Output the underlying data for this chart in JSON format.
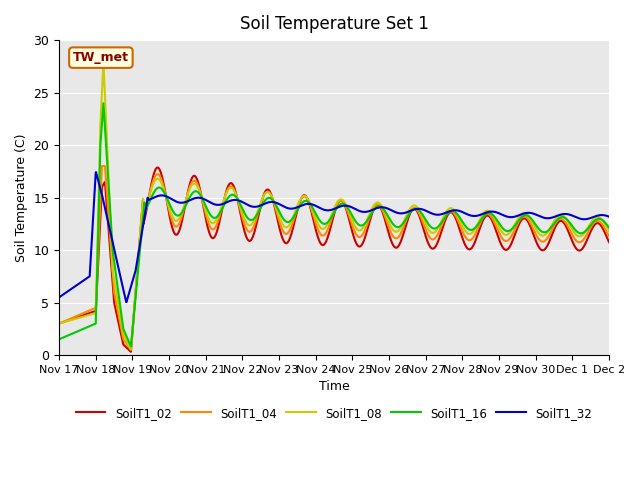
{
  "title": "Soil Temperature Set 1",
  "ylabel": "Soil Temperature (C)",
  "xlabel": "Time",
  "annotation": "TW_met",
  "ylim": [
    0,
    30
  ],
  "xlim": [
    0,
    360
  ],
  "background_color": "#e8e8e8",
  "series_colors": {
    "SoilT1_02": "#cc0000",
    "SoilT1_04": "#ff8800",
    "SoilT1_08": "#cccc00",
    "SoilT1_16": "#00cc00",
    "SoilT1_32": "#0000cc"
  },
  "x_tick_labels": [
    "Nov 17",
    "Nov 18",
    "Nov 19",
    "Nov 20",
    "Nov 21",
    "Nov 22",
    "Nov 23",
    "Nov 24",
    "Nov 25",
    "Nov 26",
    "Nov 27",
    "Nov 28",
    "Nov 29",
    "Nov 30",
    "Dec 1",
    "Dec 2"
  ],
  "x_tick_positions": [
    0,
    24,
    48,
    72,
    96,
    120,
    144,
    168,
    192,
    216,
    240,
    264,
    288,
    312,
    336,
    360
  ]
}
